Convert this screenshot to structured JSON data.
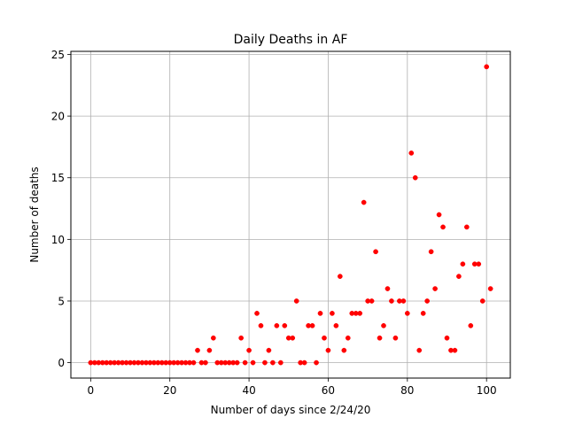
{
  "chart_data": {
    "type": "scatter",
    "title": "Daily Deaths in AF",
    "xlabel": "Number of days since 2/24/20",
    "ylabel": "Number of deaths",
    "xlim": [
      -5,
      106
    ],
    "ylim": [
      -1.25,
      25.25
    ],
    "xticks": [
      0,
      20,
      40,
      60,
      80,
      100
    ],
    "yticks": [
      0,
      5,
      10,
      15,
      20,
      25
    ],
    "grid": true,
    "marker_color": "#ff0000",
    "x": [
      0,
      1,
      2,
      3,
      4,
      5,
      6,
      7,
      8,
      9,
      10,
      11,
      12,
      13,
      14,
      15,
      16,
      17,
      18,
      19,
      20,
      21,
      22,
      23,
      24,
      25,
      26,
      27,
      28,
      29,
      30,
      31,
      32,
      33,
      34,
      35,
      36,
      37,
      38,
      39,
      40,
      41,
      42,
      43,
      44,
      45,
      46,
      47,
      48,
      49,
      50,
      51,
      52,
      53,
      54,
      55,
      56,
      57,
      58,
      59,
      60,
      61,
      62,
      63,
      64,
      65,
      66,
      67,
      68,
      69,
      70,
      71,
      72,
      73,
      74,
      75,
      76,
      77,
      78,
      79,
      80,
      81,
      82,
      83,
      84,
      85,
      86,
      87,
      88,
      89,
      90,
      91,
      92,
      93,
      94,
      95,
      96,
      97,
      98,
      99,
      100,
      101
    ],
    "y": [
      0,
      0,
      0,
      0,
      0,
      0,
      0,
      0,
      0,
      0,
      0,
      0,
      0,
      0,
      0,
      0,
      0,
      0,
      0,
      0,
      0,
      0,
      0,
      0,
      0,
      0,
      0,
      1,
      0,
      0,
      1,
      2,
      0,
      0,
      0,
      0,
      0,
      0,
      2,
      0,
      1,
      0,
      4,
      3,
      0,
      1,
      0,
      3,
      0,
      3,
      2,
      2,
      5,
      0,
      0,
      3,
      3,
      0,
      4,
      2,
      1,
      4,
      3,
      7,
      1,
      2,
      4,
      4,
      4,
      13,
      5,
      5,
      9,
      2,
      3,
      6,
      5,
      2,
      5,
      5,
      4,
      17,
      15,
      1,
      4,
      5,
      9,
      6,
      12,
      11,
      2,
      1,
      1,
      7,
      8,
      11,
      3,
      8,
      8,
      5,
      24,
      6
    ]
  }
}
